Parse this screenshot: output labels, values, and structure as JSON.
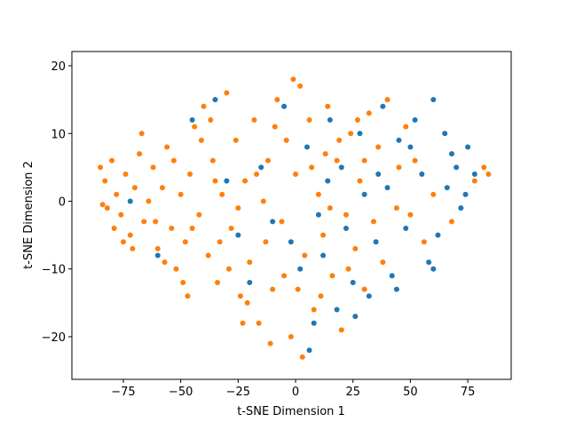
{
  "chart_data": {
    "type": "scatter",
    "xlabel": "t-SNE Dimension 1",
    "ylabel": "t-SNE Dimension 2",
    "xlim": [
      -97.4,
      93.9
    ],
    "ylim": [
      -26.3,
      22.1
    ],
    "xticks": [
      {
        "value": -75,
        "label": "−75"
      },
      {
        "value": -50,
        "label": "−50"
      },
      {
        "value": -25,
        "label": "−25"
      },
      0,
      25,
      50,
      75
    ],
    "yticks": [
      {
        "value": -20,
        "label": "−20"
      },
      {
        "value": -10,
        "label": "−10"
      },
      0,
      10,
      20
    ],
    "series": [
      {
        "color": "#1f77b4",
        "x": [
          60,
          65,
          70,
          75,
          78,
          72,
          66,
          62,
          58,
          55,
          52,
          48,
          45,
          42,
          40,
          38,
          35,
          32,
          30,
          28,
          25,
          22,
          20,
          18,
          15,
          12,
          10,
          6,
          5,
          2,
          -5,
          -10,
          -15,
          -20,
          -25,
          -30,
          -35,
          -45,
          -60,
          -72,
          68,
          74,
          60,
          50,
          44,
          36,
          26,
          14,
          8,
          -2
        ],
        "values": [
          15,
          10,
          5,
          8,
          4,
          -1,
          2,
          -5,
          -9,
          4,
          12,
          -4,
          9,
          -11,
          2,
          14,
          -6,
          -14,
          1,
          10,
          -12,
          -4,
          5,
          -16,
          12,
          -8,
          -2,
          -22,
          8,
          -10,
          14,
          -3,
          5,
          -12,
          -5,
          3,
          15,
          12,
          -8,
          0,
          7,
          1,
          -10,
          8,
          -13,
          4,
          -17,
          3,
          -18,
          -6
        ]
      },
      {
        "color": "#ff7f0e",
        "x": [
          -85,
          -83,
          -80,
          -78,
          -76,
          -82,
          -74,
          -72,
          -70,
          -68,
          -66,
          -64,
          -62,
          -60,
          -58,
          -56,
          -54,
          -52,
          -50,
          -48,
          -46,
          -44,
          -42,
          -40,
          -38,
          -36,
          -34,
          -32,
          -30,
          -28,
          -26,
          -24,
          -22,
          -20,
          -18,
          -16,
          -14,
          -12,
          -10,
          -8,
          -6,
          -4,
          -2,
          0,
          2,
          4,
          6,
          8,
          10,
          12,
          14,
          16,
          18,
          20,
          22,
          24,
          26,
          28,
          30,
          32,
          34,
          36,
          40,
          44,
          48,
          52,
          -84,
          -79,
          -71,
          -67,
          -61,
          -57,
          -53,
          -49,
          -45,
          -41,
          -37,
          -33,
          -29,
          -25,
          -21,
          -17,
          -13,
          -9,
          -5,
          -1,
          3,
          7,
          11,
          15,
          19,
          23,
          27,
          -47,
          -35,
          -23,
          -11,
          1,
          13,
          -75,
          82,
          84,
          78,
          60,
          68,
          45,
          38,
          56,
          50,
          30
        ],
        "values": [
          5,
          3,
          6,
          1,
          -2,
          -1,
          4,
          -5,
          2,
          7,
          -3,
          0,
          5,
          -7,
          2,
          8,
          -4,
          -10,
          1,
          -6,
          4,
          11,
          -2,
          14,
          -8,
          6,
          -12,
          1,
          16,
          -4,
          9,
          -14,
          3,
          -9,
          12,
          -18,
          0,
          6,
          -13,
          15,
          -3,
          9,
          -20,
          4,
          17,
          -8,
          12,
          -16,
          1,
          -5,
          14,
          -11,
          6,
          -19,
          -2,
          10,
          -7,
          3,
          -13,
          13,
          -3,
          8,
          15,
          -1,
          11,
          6,
          -0.5,
          -4,
          -7,
          10,
          -3,
          -9,
          6,
          -12,
          -4,
          9,
          12,
          -6,
          -10,
          -1,
          -15,
          4,
          -6,
          11,
          -11,
          18,
          -23,
          5,
          -14,
          -1,
          9,
          -10,
          12,
          -14,
          3,
          -18,
          -21,
          -13,
          7,
          -6,
          5,
          4,
          3,
          1,
          -3,
          5,
          -9,
          -6,
          -2,
          6
        ]
      }
    ]
  }
}
